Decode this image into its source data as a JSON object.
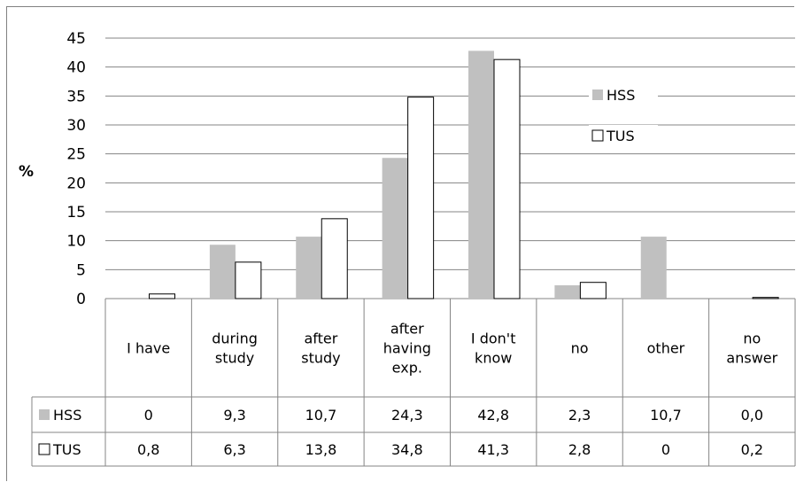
{
  "chart_data": {
    "type": "bar",
    "ylabel": "%",
    "ylim": [
      0,
      45
    ],
    "yticks": [
      "0",
      "5",
      "10",
      "15",
      "20",
      "25",
      "30",
      "35",
      "40",
      "45"
    ],
    "grid": true,
    "legend_position": "top-right",
    "categories": [
      [
        "I have"
      ],
      [
        "during",
        "study"
      ],
      [
        "after",
        "study"
      ],
      [
        "after",
        "having",
        "exp."
      ],
      [
        "I don't",
        "know"
      ],
      [
        "no"
      ],
      [
        "other"
      ],
      [
        "no",
        "answer"
      ]
    ],
    "series": [
      {
        "name": "HSS",
        "color": "#c0c0c0",
        "values": [
          0,
          9.3,
          10.7,
          24.3,
          42.8,
          2.3,
          10.7,
          0.0
        ],
        "labels": [
          "0",
          "9,3",
          "10,7",
          "24,3",
          "42,8",
          "2,3",
          "10,7",
          "0,0"
        ]
      },
      {
        "name": "TUS",
        "color": "#ffffff",
        "values": [
          0.8,
          6.3,
          13.8,
          34.8,
          41.3,
          2.8,
          0,
          0.2
        ],
        "labels": [
          "0,8",
          "6,3",
          "13,8",
          "34,8",
          "41,3",
          "2,8",
          "0",
          "0,2"
        ]
      }
    ]
  }
}
